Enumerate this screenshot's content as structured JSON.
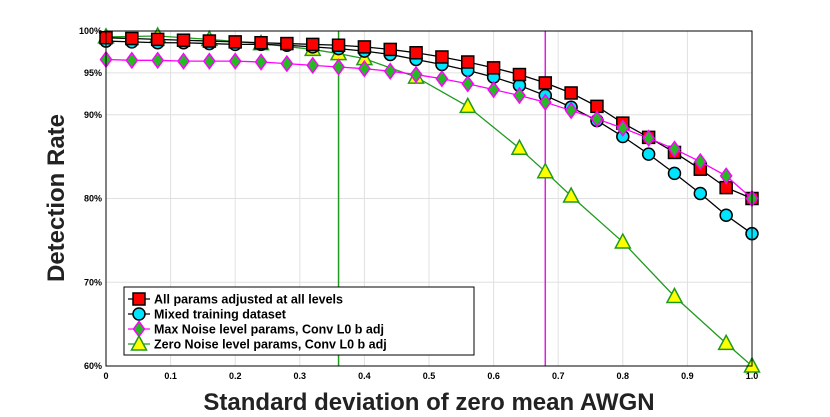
{
  "chart_data": {
    "type": "line",
    "title": "",
    "xlabel": "Standard deviation of zero mean AWGN",
    "ylabel": "Detection Rate",
    "xlim": [
      0,
      1.0
    ],
    "ylim": [
      60,
      100
    ],
    "xticks": [
      0,
      0.1,
      0.2,
      0.3,
      0.4,
      0.5,
      0.6,
      0.7,
      0.8,
      0.9,
      1.0
    ],
    "xtick_labels": [
      "0",
      "0.1",
      "0.2",
      "0.3",
      "0.4",
      "0.5",
      "0.6",
      "0.7",
      "0.8",
      "0.9",
      "1.0"
    ],
    "yticks": [
      60,
      70,
      80,
      90,
      95,
      100
    ],
    "ytick_labels": [
      "60%",
      "70%",
      "80%",
      "90%",
      "95%",
      "100%"
    ],
    "grid": true,
    "legend_position": "bottom-left",
    "vertical_lines": [
      {
        "x": 0.36,
        "color": "#1f9a1f"
      },
      {
        "x": 0.68,
        "color": "#e020e0"
      }
    ],
    "series": [
      {
        "name": "All params adjusted at all levels",
        "color": "#000000",
        "marker": "square",
        "marker_fill": "#ff0000",
        "x": [
          0,
          0.04,
          0.08,
          0.12,
          0.16,
          0.2,
          0.24,
          0.28,
          0.32,
          0.36,
          0.4,
          0.44,
          0.48,
          0.52,
          0.56,
          0.6,
          0.64,
          0.68,
          0.72,
          0.76,
          0.8,
          0.84,
          0.88,
          0.92,
          0.96,
          1.0
        ],
        "values": [
          99.2,
          99.1,
          99.0,
          98.9,
          98.8,
          98.7,
          98.6,
          98.5,
          98.4,
          98.3,
          98.1,
          97.8,
          97.4,
          96.9,
          96.3,
          95.6,
          94.8,
          93.8,
          92.6,
          91.0,
          89.0,
          87.3,
          85.5,
          83.5,
          81.3,
          80.0
        ]
      },
      {
        "name": "Mixed training dataset",
        "color": "#000000",
        "marker": "circle",
        "marker_fill": "#00e5ff",
        "x": [
          0,
          0.04,
          0.08,
          0.12,
          0.16,
          0.2,
          0.24,
          0.28,
          0.32,
          0.36,
          0.4,
          0.44,
          0.48,
          0.52,
          0.56,
          0.6,
          0.64,
          0.68,
          0.72,
          0.76,
          0.8,
          0.84,
          0.88,
          0.92,
          0.96,
          1.0
        ],
        "values": [
          98.8,
          98.7,
          98.6,
          98.6,
          98.5,
          98.4,
          98.4,
          98.3,
          98.1,
          97.9,
          97.6,
          97.2,
          96.6,
          96.0,
          95.3,
          94.5,
          93.5,
          92.3,
          90.9,
          89.3,
          87.4,
          85.3,
          83.0,
          80.6,
          78.0,
          75.8
        ]
      },
      {
        "name": "Max Noise level params, Conv L0 b adj",
        "color": "#ff00ff",
        "marker": "diamond",
        "marker_fill": "#22bb22",
        "x": [
          0,
          0.04,
          0.08,
          0.12,
          0.16,
          0.2,
          0.24,
          0.28,
          0.32,
          0.36,
          0.4,
          0.44,
          0.48,
          0.52,
          0.56,
          0.6,
          0.64,
          0.68,
          0.72,
          0.76,
          0.8,
          0.84,
          0.88,
          0.92,
          0.96,
          1.0
        ],
        "values": [
          96.6,
          96.5,
          96.5,
          96.4,
          96.4,
          96.4,
          96.3,
          96.1,
          95.9,
          95.7,
          95.5,
          95.2,
          94.8,
          94.3,
          93.7,
          93.0,
          92.3,
          91.5,
          90.5,
          89.5,
          88.4,
          87.2,
          85.9,
          84.4,
          82.7,
          80.0
        ]
      },
      {
        "name": "Zero Noise level params, Conv L0 b adj",
        "color": "#1f9a1f",
        "marker": "triangle",
        "marker_fill": "#ffff00",
        "x": [
          0,
          0.08,
          0.16,
          0.24,
          0.32,
          0.36,
          0.4,
          0.48,
          0.56,
          0.64,
          0.68,
          0.72,
          0.8,
          0.88,
          0.96,
          1.0
        ],
        "values": [
          99.3,
          99.4,
          99.0,
          98.5,
          97.8,
          97.3,
          96.7,
          94.5,
          91.0,
          86.0,
          83.2,
          80.3,
          74.8,
          68.3,
          62.7,
          60.0
        ]
      }
    ]
  }
}
